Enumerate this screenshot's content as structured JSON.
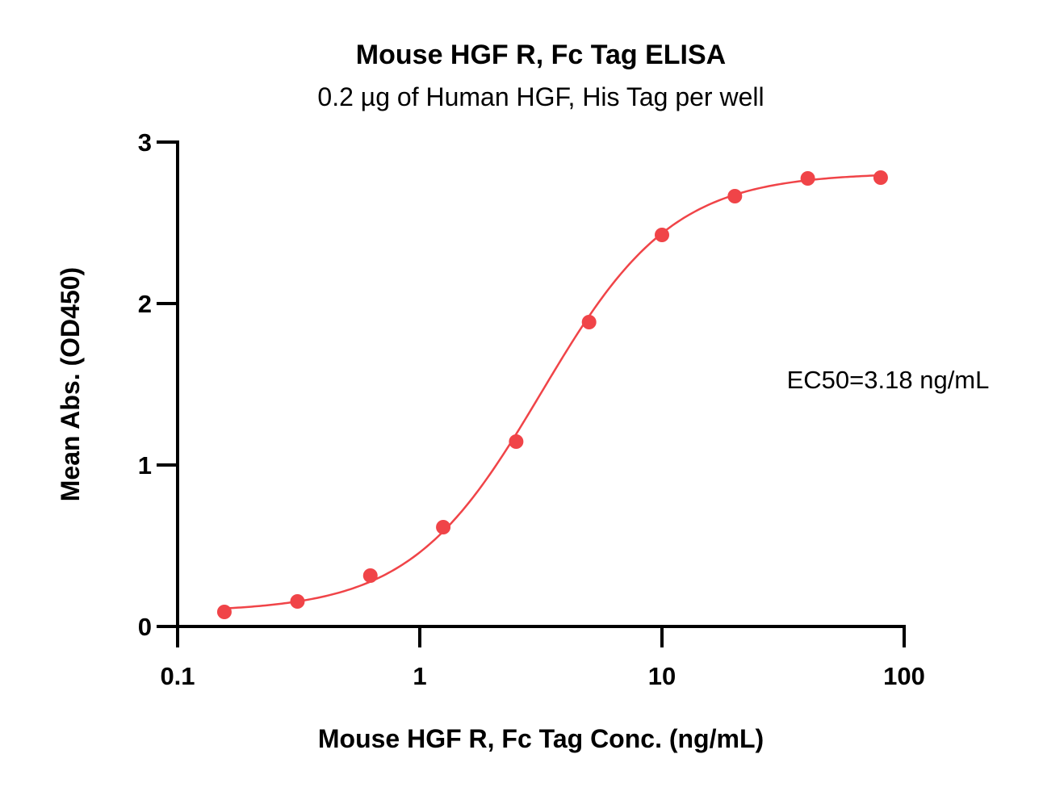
{
  "chart_data": {
    "type": "scatter",
    "title": "Mouse HGF R, Fc Tag ELISA",
    "subtitle": "0.2 µg of Human HGF, His Tag per well",
    "xlabel": "Mouse HGF R, Fc Tag Conc. (ng/mL)",
    "ylabel": "Mean Abs. (OD450)",
    "xscale": "log",
    "xlim": [
      0.1,
      100
    ],
    "ylim": [
      0,
      3
    ],
    "x_ticks": [
      0.1,
      1,
      10,
      100
    ],
    "x_tick_labels": [
      "0.1",
      "1",
      "10",
      "100"
    ],
    "y_ticks": [
      0,
      1,
      2,
      3
    ],
    "y_tick_labels": [
      "0",
      "1",
      "2",
      "3"
    ],
    "grid": false,
    "legend": "none",
    "annotation": "EC50=3.18 ng/mL",
    "series": [
      {
        "color": "#f04448",
        "fit": "4-parameter logistic",
        "x": [
          0.156,
          0.3125,
          0.625,
          1.25,
          2.5,
          5,
          10,
          20,
          40,
          80
        ],
        "y": [
          0.09,
          0.155,
          0.315,
          0.615,
          1.145,
          1.885,
          2.425,
          2.665,
          2.775,
          2.78
        ]
      }
    ],
    "fit_params": {
      "bottom": 0.09,
      "top": 2.81,
      "ec50": 3.18,
      "hill": 1.6
    }
  }
}
